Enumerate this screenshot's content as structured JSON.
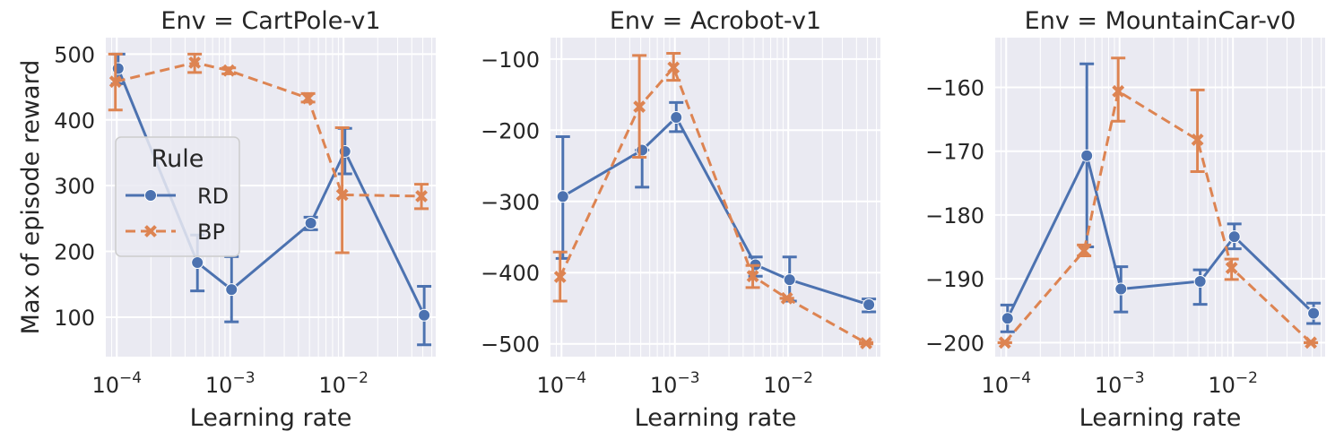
{
  "figure": {
    "ylabel": "Max of episode reward",
    "xlabel": "Learning rate",
    "legend": {
      "title": "Rule",
      "entries": [
        {
          "label": "RD",
          "color": "#4c72b0",
          "marker": "circle",
          "dash": "solid"
        },
        {
          "label": "BP",
          "color": "#dd8452",
          "marker": "x",
          "dash": "dashed"
        }
      ],
      "placement": "center-left of first panel"
    },
    "panel_background": "#eaeaf2",
    "grid": true,
    "xscale": "log"
  },
  "chart_data": [
    {
      "type": "line",
      "title": "Env = CartPole-v1",
      "xlabel": "Learning rate",
      "ylabel": "Max of episode reward",
      "x": [
        0.0001,
        0.0005,
        0.001,
        0.005,
        0.01,
        0.05
      ],
      "xlim": [
        8e-05,
        0.065
      ],
      "ylim": [
        40,
        525
      ],
      "yticks": [
        100,
        200,
        300,
        400,
        500
      ],
      "ytick_labels": [
        "100",
        "200",
        "300",
        "400",
        "500"
      ],
      "xticks": [
        {
          "base": "10",
          "exp": "−4",
          "value": 0.0001
        },
        {
          "base": "10",
          "exp": "−3",
          "value": 0.001
        },
        {
          "base": "10",
          "exp": "−2",
          "value": 0.01
        }
      ],
      "series": [
        {
          "name": "RD",
          "values": [
            478,
            183,
            142,
            243,
            352,
            103
          ],
          "err_low": [
            455,
            140,
            93,
            233,
            318,
            58
          ],
          "err_high": [
            500,
            225,
            192,
            252,
            387,
            147
          ]
        },
        {
          "name": "BP",
          "values": [
            458,
            487,
            475,
            433,
            286,
            284
          ],
          "err_low": [
            415,
            472,
            470,
            427,
            198,
            265
          ],
          "err_high": [
            500,
            500,
            479,
            440,
            388,
            302
          ]
        }
      ],
      "show_legend": true
    },
    {
      "type": "line",
      "title": "Env = Acrobot-v1",
      "xlabel": "Learning rate",
      "ylabel": "",
      "x": [
        0.0001,
        0.0005,
        0.001,
        0.005,
        0.01,
        0.05
      ],
      "xlim": [
        8e-05,
        0.065
      ],
      "ylim": [
        -518,
        -70
      ],
      "yticks": [
        -500,
        -400,
        -300,
        -200,
        -100
      ],
      "ytick_labels": [
        "−500",
        "−400",
        "−300",
        "−200",
        "−100"
      ],
      "xticks": [
        {
          "base": "10",
          "exp": "−4",
          "value": 0.0001
        },
        {
          "base": "10",
          "exp": "−3",
          "value": 0.001
        },
        {
          "base": "10",
          "exp": "−2",
          "value": 0.01
        }
      ],
      "series": [
        {
          "name": "RD",
          "values": [
            -293,
            -228,
            -182,
            -389,
            -410,
            -445
          ],
          "err_low": [
            -380,
            -280,
            -202,
            -405,
            -440,
            -455
          ],
          "err_high": [
            -209,
            -228,
            -161,
            -378,
            -378,
            -437
          ]
        },
        {
          "name": "BP",
          "values": [
            -406,
            -167,
            -112,
            -405,
            -436,
            -499
          ],
          "err_low": [
            -440,
            -238,
            -130,
            -421,
            -436,
            -500
          ],
          "err_high": [
            -371,
            -95,
            -92,
            -390,
            -436,
            -498
          ]
        }
      ],
      "show_legend": false
    },
    {
      "type": "line",
      "title": "Env = MountainCar-v0",
      "xlabel": "Learning rate",
      "ylabel": "",
      "x": [
        0.0001,
        0.0005,
        0.001,
        0.005,
        0.01,
        0.05
      ],
      "xlim": [
        8e-05,
        0.065
      ],
      "ylim": [
        -202.2,
        -152.2
      ],
      "yticks": [
        -200,
        -190,
        -180,
        -170,
        -160
      ],
      "ytick_labels": [
        "−200",
        "−190",
        "−180",
        "−170",
        "−160"
      ],
      "xticks": [
        {
          "base": "10",
          "exp": "−4",
          "value": 0.0001
        },
        {
          "base": "10",
          "exp": "−3",
          "value": 0.001
        },
        {
          "base": "10",
          "exp": "−2",
          "value": 0.01
        }
      ],
      "series": [
        {
          "name": "RD",
          "values": [
            -196.2,
            -170.7,
            -191.6,
            -190.4,
            -183.4,
            -195.4
          ],
          "err_low": [
            -198.3,
            -185.0,
            -195.2,
            -194.0,
            -185.3,
            -197.0
          ],
          "err_high": [
            -194.1,
            -156.3,
            -188.1,
            -188.6,
            -181.4,
            -193.8
          ]
        },
        {
          "name": "BP",
          "values": [
            -200,
            -185.6,
            -160.6,
            -168.2,
            -188.3,
            -200
          ],
          "err_low": [
            -200,
            -186.4,
            -165.3,
            -173.2,
            -190.1,
            -200
          ],
          "err_high": [
            -200,
            -184.7,
            -155.4,
            -160.4,
            -186.9,
            -200
          ]
        }
      ],
      "show_legend": false
    }
  ]
}
